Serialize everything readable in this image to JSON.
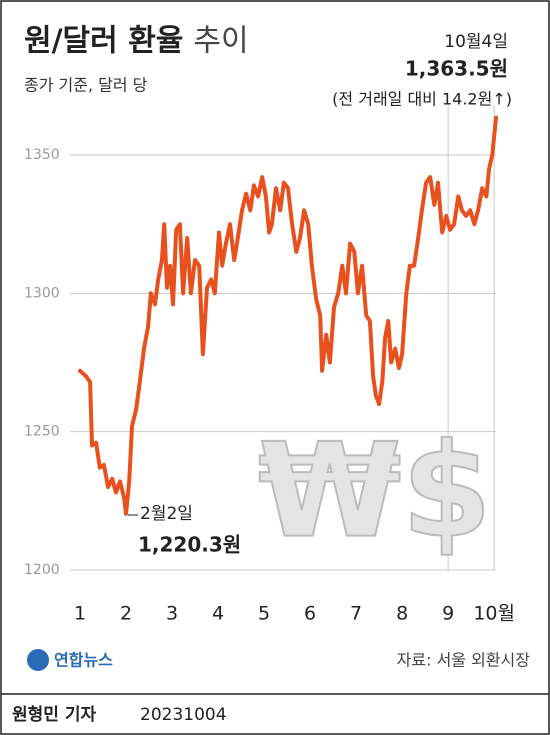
{
  "chart_data": {
    "type": "line",
    "title": "원/달러 환율",
    "title_suffix": "추이",
    "subtitle": "종가 기준, 달러 당",
    "color": "#e8501e",
    "x": [
      1.0,
      1.13,
      1.22,
      1.26,
      1.35,
      1.43,
      1.52,
      1.61,
      1.7,
      1.78,
      1.87,
      1.96,
      2.0,
      2.07,
      2.13,
      2.22,
      2.3,
      2.39,
      2.48,
      2.54,
      2.63,
      2.7,
      2.78,
      2.83,
      2.89,
      2.96,
      3.02,
      3.09,
      3.17,
      3.24,
      3.33,
      3.41,
      3.5,
      3.59,
      3.67,
      3.76,
      3.85,
      3.93,
      4.02,
      4.09,
      4.17,
      4.26,
      4.35,
      4.43,
      4.52,
      4.61,
      4.7,
      4.78,
      4.87,
      4.96,
      5.04,
      5.11,
      5.17,
      5.26,
      5.35,
      5.43,
      5.52,
      5.61,
      5.7,
      5.78,
      5.87,
      5.96,
      6.04,
      6.13,
      6.22,
      6.26,
      6.35,
      6.43,
      6.52,
      6.61,
      6.7,
      6.78,
      6.87,
      6.96,
      7.04,
      7.13,
      7.22,
      7.3,
      7.37,
      7.43,
      7.5,
      7.57,
      7.63,
      7.7,
      7.76,
      7.85,
      7.93,
      8.0,
      8.09,
      8.17,
      8.26,
      8.35,
      8.43,
      8.52,
      8.61,
      8.7,
      8.78,
      8.87,
      8.96,
      9.04,
      9.13,
      9.22,
      9.3,
      9.39,
      9.48,
      9.57,
      9.65,
      9.74,
      9.83,
      9.89,
      9.96,
      10.04
    ],
    "values": [
      1272,
      1270,
      1268,
      1245,
      1246,
      1237,
      1238,
      1230,
      1233,
      1228,
      1232,
      1226,
      1220.3,
      1232,
      1252,
      1258,
      1268,
      1280,
      1288,
      1300,
      1296,
      1305,
      1312,
      1325,
      1302,
      1310,
      1296,
      1323,
      1325,
      1300,
      1320,
      1300,
      1312,
      1310,
      1278,
      1302,
      1305,
      1300,
      1322,
      1310,
      1318,
      1325,
      1312,
      1320,
      1330,
      1336,
      1330,
      1339,
      1335,
      1342,
      1335,
      1322,
      1325,
      1338,
      1330,
      1340,
      1338,
      1325,
      1315,
      1320,
      1330,
      1325,
      1310,
      1298,
      1292,
      1272,
      1285,
      1275,
      1295,
      1300,
      1310,
      1300,
      1318,
      1315,
      1300,
      1310,
      1292,
      1290,
      1270,
      1263,
      1260,
      1268,
      1284,
      1290,
      1275,
      1280,
      1273,
      1278,
      1300,
      1310,
      1310,
      1320,
      1330,
      1340,
      1342,
      1332,
      1340,
      1322,
      1328,
      1323,
      1325,
      1335,
      1330,
      1328,
      1330,
      1325,
      1330,
      1338,
      1335,
      1345,
      1350,
      1363.5
    ],
    "xlim": [
      1,
      10.04
    ],
    "xticks": [
      1,
      2,
      3,
      4,
      5,
      6,
      7,
      8,
      9,
      {
        "value": 10,
        "label": "10월"
      }
    ],
    "ylim": [
      1200,
      1365
    ],
    "yticks": [
      1200,
      1250,
      1300,
      1350
    ],
    "grid": true,
    "annotations": {
      "last_date": "10월4일",
      "last_value": "1,363.5원",
      "last_change": "(전 거래일 대비 14.2원↑)",
      "low_date": "2월2일",
      "low_value": "1,220.3원"
    },
    "symbol": "₩$",
    "logo": "연합뉴스",
    "source": "자료: 서울 외환시장",
    "byline": "원형민 기자",
    "date": "20231004"
  }
}
